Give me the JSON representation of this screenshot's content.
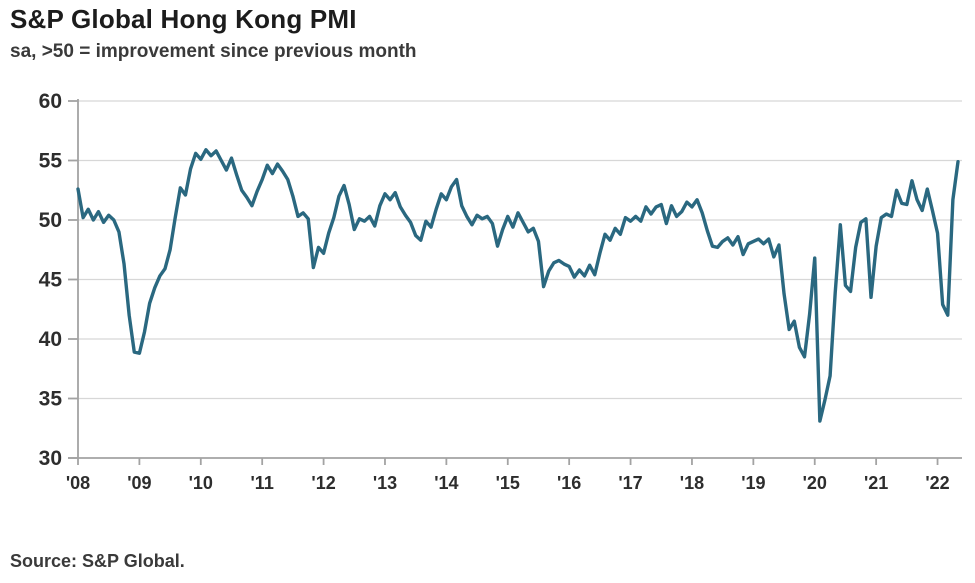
{
  "header": {
    "title": "S&P Global Hong Kong PMI",
    "subtitle": "sa, >50 = improvement since previous month"
  },
  "footer": {
    "source": "Source: S&P Global."
  },
  "colors": {
    "line": "#2a6880",
    "grid": "#d7d7d7",
    "axis": "#a3a3a3",
    "tick_text": "#2d2d2d"
  },
  "chart_data": {
    "type": "line",
    "title": "S&P Global Hong Kong PMI",
    "subtitle": "sa, >50 = improvement since previous month",
    "x_start": "2008-01",
    "x_end": "2022-05",
    "x_tick_labels": [
      "'08",
      "'09",
      "'10",
      "'11",
      "'12",
      "'13",
      "'14",
      "'15",
      "'16",
      "'17",
      "'18",
      "'19",
      "'20",
      "'21",
      "'22"
    ],
    "y_ticks": [
      30,
      35,
      40,
      45,
      50,
      55,
      60
    ],
    "ylim": [
      30,
      60
    ],
    "grid": "horizontal",
    "legend_position": "none",
    "series": [
      {
        "name": "Hong Kong PMI (sa)",
        "color": "#2a6880",
        "frequency": "monthly",
        "values": [
          52.6,
          50.2,
          50.9,
          50.0,
          50.7,
          49.8,
          50.4,
          50.0,
          49.0,
          46.3,
          42.0,
          38.9,
          38.8,
          40.6,
          43.0,
          44.3,
          45.3,
          45.9,
          47.5,
          50.2,
          52.7,
          52.1,
          54.3,
          55.6,
          55.1,
          55.9,
          55.4,
          55.8,
          55.0,
          54.2,
          55.2,
          53.8,
          52.5,
          51.9,
          51.2,
          52.4,
          53.4,
          54.6,
          53.9,
          54.7,
          54.1,
          53.4,
          52.0,
          50.3,
          50.6,
          50.1,
          46.0,
          47.7,
          47.2,
          48.9,
          50.2,
          52.0,
          52.9,
          51.3,
          49.2,
          50.1,
          49.9,
          50.3,
          49.5,
          51.2,
          52.2,
          51.7,
          52.3,
          51.1,
          50.4,
          49.8,
          48.7,
          48.3,
          49.9,
          49.4,
          50.9,
          52.2,
          51.7,
          52.8,
          53.4,
          51.2,
          50.3,
          49.6,
          50.4,
          50.1,
          50.3,
          49.7,
          47.8,
          49.2,
          50.3,
          49.4,
          50.6,
          49.8,
          49.0,
          49.3,
          48.2,
          44.4,
          45.7,
          46.4,
          46.6,
          46.3,
          46.1,
          45.2,
          45.8,
          45.3,
          46.2,
          45.4,
          47.2,
          48.8,
          48.3,
          49.3,
          48.8,
          50.2,
          49.9,
          50.3,
          49.9,
          51.1,
          50.5,
          51.1,
          51.3,
          49.7,
          51.2,
          50.3,
          50.7,
          51.5,
          51.1,
          51.7,
          50.6,
          49.1,
          47.8,
          47.7,
          48.2,
          48.5,
          47.9,
          48.6,
          47.1,
          48.0,
          48.2,
          48.4,
          48.0,
          48.4,
          46.9,
          47.9,
          43.8,
          40.8,
          41.5,
          39.3,
          38.5,
          42.1,
          46.8,
          33.1,
          34.9,
          36.9,
          43.9,
          49.6,
          44.5,
          44.0,
          47.7,
          49.8,
          50.1,
          43.5,
          47.8,
          50.2,
          50.5,
          50.3,
          52.5,
          51.4,
          51.3,
          53.3,
          51.7,
          50.8,
          52.6,
          50.8,
          48.9,
          42.9,
          42.0,
          51.7,
          54.9
        ]
      }
    ]
  }
}
